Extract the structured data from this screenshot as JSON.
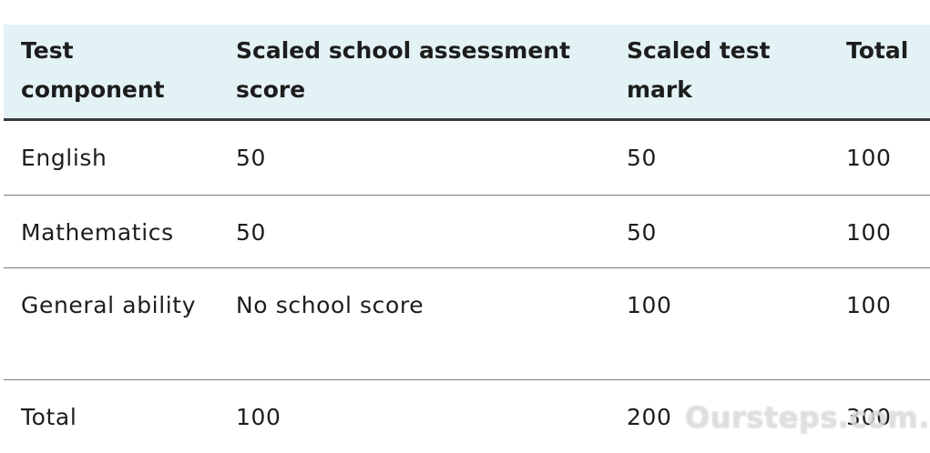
{
  "table": {
    "headers": [
      "Test component",
      "Scaled school assessment score",
      "Scaled test mark",
      "Total"
    ],
    "rows": [
      [
        "English",
        "50",
        "50",
        "100"
      ],
      [
        "Mathematics",
        "50",
        "50",
        "100"
      ],
      [
        "General ability",
        "No school score",
        "100",
        "100"
      ],
      [
        "Total",
        "100",
        "200",
        "300"
      ]
    ]
  },
  "watermark": "Oursteps.com.au",
  "colors": {
    "header_background": "#e3f2f4",
    "header_rule": "#3a3a3a",
    "row_rule": "#7a7a7a",
    "text": "#1d1d1d"
  }
}
